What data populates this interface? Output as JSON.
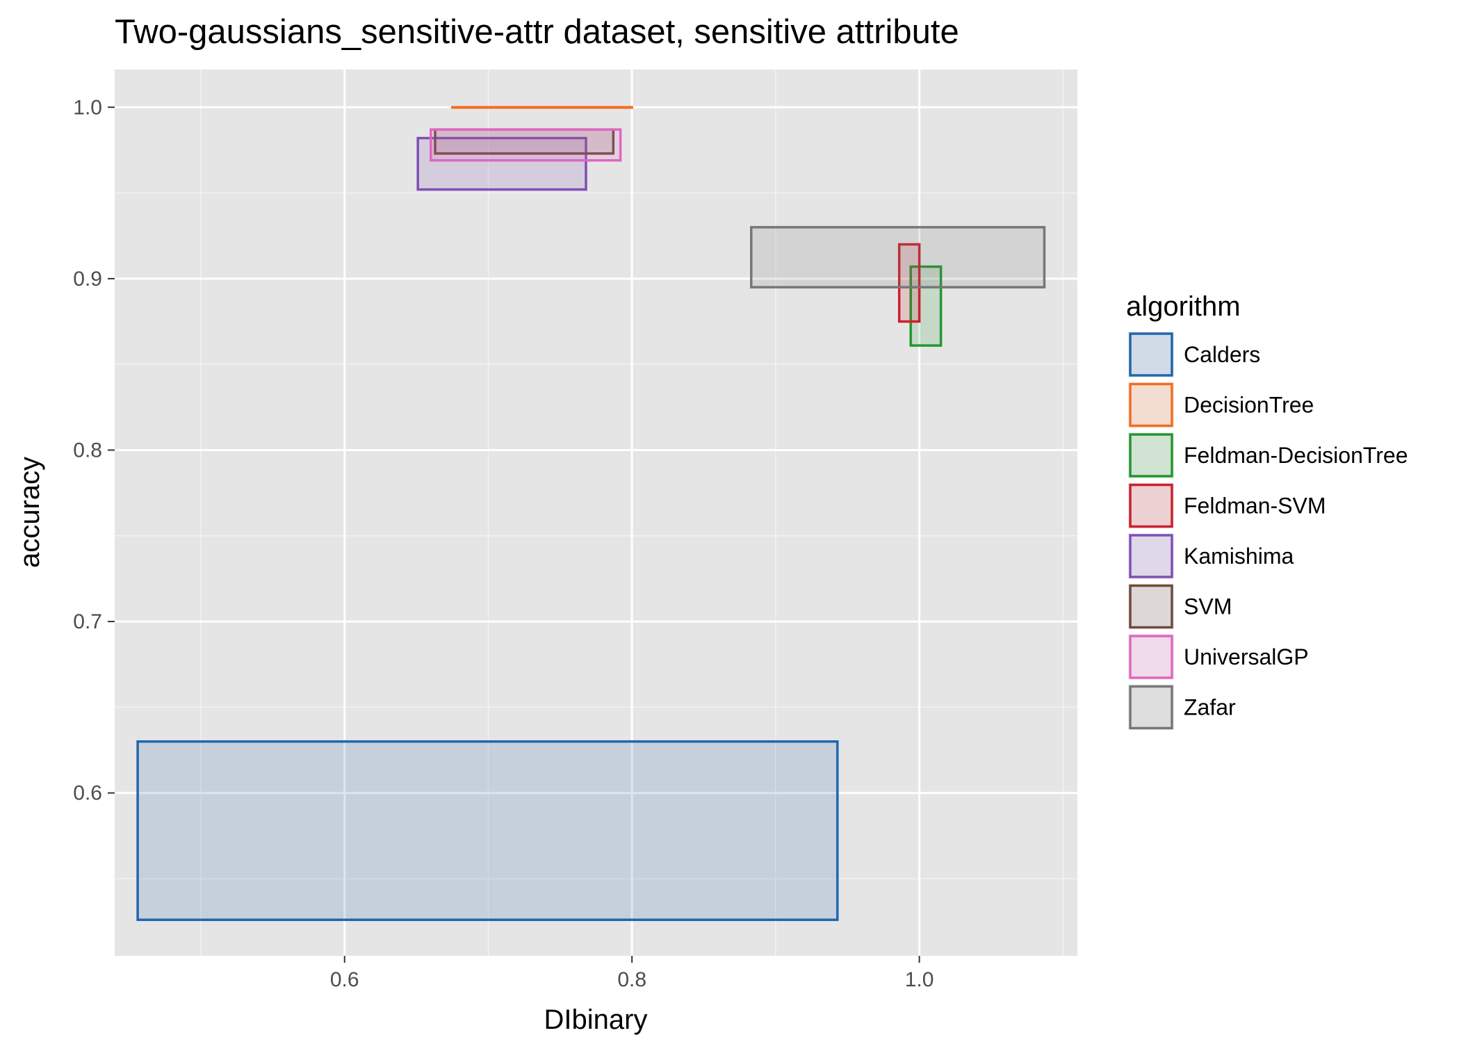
{
  "chart_data": {
    "type": "box-rectangles",
    "title": "Two-gaussians_sensitive-attr dataset, sensitive attribute",
    "xlabel": "DIbinary",
    "ylabel": "accuracy",
    "xlim": [
      0.44,
      1.11
    ],
    "ylim": [
      0.505,
      1.022
    ],
    "x_ticks": [
      0.6,
      0.8,
      1.0
    ],
    "x_tick_labels": [
      "0.6",
      "0.8",
      "1.0"
    ],
    "y_ticks": [
      0.6,
      0.7,
      0.8,
      0.9,
      1.0
    ],
    "y_tick_labels": [
      "0.6",
      "0.7",
      "0.8",
      "0.9",
      "1.0"
    ],
    "grid": true,
    "legend_title": "algorithm",
    "legend_position": "right",
    "series": [
      {
        "name": "Calders",
        "color": "#2166ac",
        "xmin": 0.456,
        "xmax": 0.943,
        "ymin": 0.526,
        "ymax": 0.63
      },
      {
        "name": "DecisionTree",
        "color": "#f46d1f",
        "xmin": 0.675,
        "xmax": 0.8,
        "ymin": 1.0,
        "ymax": 1.0
      },
      {
        "name": "Feldman-DecisionTree",
        "color": "#23962f",
        "xmin": 0.994,
        "xmax": 1.015,
        "ymin": 0.861,
        "ymax": 0.907
      },
      {
        "name": "Feldman-SVM",
        "color": "#cc1f2e",
        "xmin": 0.986,
        "xmax": 1.0,
        "ymin": 0.875,
        "ymax": 0.92
      },
      {
        "name": "Kamishima",
        "color": "#7f4fb5",
        "xmin": 0.651,
        "xmax": 0.768,
        "ymin": 0.952,
        "ymax": 0.982
      },
      {
        "name": "SVM",
        "color": "#6f4a40",
        "xmin": 0.663,
        "xmax": 0.787,
        "ymin": 0.973,
        "ymax": 0.987
      },
      {
        "name": "UniversalGP",
        "color": "#e066c0",
        "xmin": 0.66,
        "xmax": 0.792,
        "ymin": 0.969,
        "ymax": 0.987
      },
      {
        "name": "Zafar",
        "color": "#777777",
        "xmin": 0.883,
        "xmax": 1.087,
        "ymin": 0.895,
        "ymax": 0.93
      }
    ]
  }
}
